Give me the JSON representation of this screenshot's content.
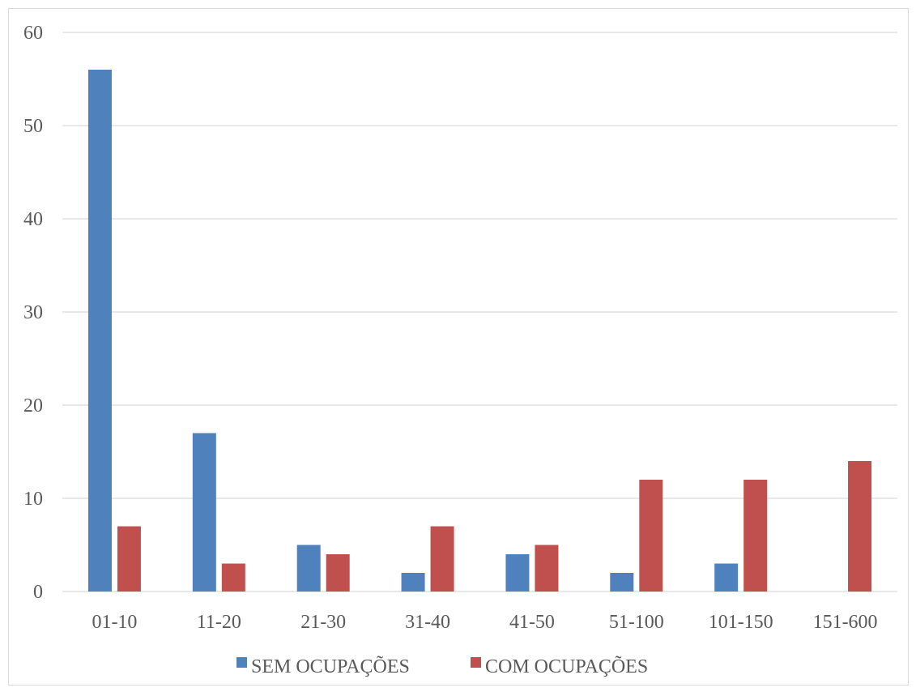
{
  "chart_data": {
    "type": "bar",
    "title": "",
    "xlabel": "",
    "ylabel": "",
    "categories": [
      "01-10",
      "11-20",
      "21-30",
      "31-40",
      "41-50",
      "51-100",
      "101-150",
      "151-600"
    ],
    "series": [
      {
        "name": "SEM OCUPAÇÕES",
        "color": "#4f81bd",
        "values": [
          56,
          17,
          5,
          2,
          4,
          2,
          3,
          0
        ]
      },
      {
        "name": "COM OCUPAÇÕES",
        "color": "#c0504d",
        "values": [
          7,
          3,
          4,
          7,
          5,
          12,
          12,
          14
        ]
      }
    ],
    "ylim": [
      0,
      60
    ],
    "yticks": [
      0,
      10,
      20,
      30,
      40,
      50,
      60
    ],
    "grid": true,
    "legend_position": "bottom"
  }
}
